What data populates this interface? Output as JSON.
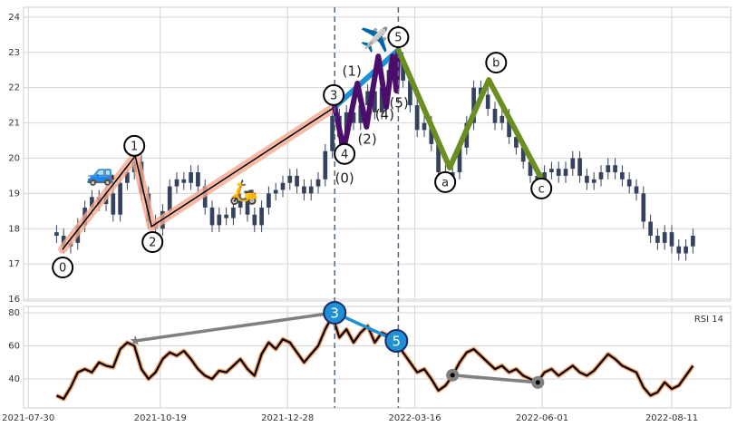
{
  "chart_data": [
    {
      "type": "candlestick",
      "x": [
        12,
        15,
        18,
        21,
        24,
        27,
        30,
        33,
        36,
        39,
        42,
        45,
        48,
        51,
        54,
        57,
        60,
        63,
        66,
        69,
        72,
        75,
        78,
        81,
        84,
        87,
        90,
        93,
        96,
        99,
        102,
        105,
        108,
        111,
        114,
        117,
        120,
        123,
        126,
        129,
        132,
        135,
        138,
        141,
        144,
        147,
        150,
        153,
        156,
        159,
        162,
        165,
        168,
        171,
        174,
        177,
        180,
        183,
        186,
        189,
        192,
        195,
        198,
        201,
        204,
        207,
        210,
        213,
        216,
        219,
        222,
        225,
        228,
        231,
        234,
        237,
        240,
        243,
        246,
        249,
        252,
        255,
        258,
        261,
        264,
        267,
        270,
        273,
        276,
        279,
        282
      ],
      "open": [
        17.9,
        17.8,
        17.5,
        17.6,
        18.1,
        18.6,
        18.9,
        18.7,
        19.0,
        18.4,
        19.3,
        19.6,
        19.9,
        19.0,
        18.2,
        18.0,
        18.5,
        19.2,
        19.4,
        19.3,
        19.6,
        19.2,
        18.6,
        18.1,
        18.4,
        18.3,
        18.6,
        18.8,
        18.4,
        18.1,
        18.6,
        19.0,
        19.1,
        19.3,
        19.5,
        19.2,
        19.0,
        19.2,
        19.4,
        20.2,
        21.2,
        20.6,
        21.3,
        21.0,
        21.5,
        21.9,
        21.3,
        22.0,
        22.5,
        22.8,
        22.2,
        21.5,
        20.8,
        21.0,
        20.4,
        19.6,
        19.3,
        19.6,
        20.3,
        21.0,
        22.0,
        21.8,
        21.4,
        21.0,
        21.2,
        20.6,
        20.3,
        19.9,
        19.5,
        19.3,
        19.6,
        19.7,
        19.5,
        19.7,
        20.0,
        19.5,
        19.3,
        19.4,
        19.6,
        19.8,
        19.6,
        19.4,
        19.2,
        19.0,
        18.2,
        17.8,
        17.6,
        17.9,
        17.5,
        17.3,
        17.5
      ],
      "high": [
        18.1,
        18.0,
        17.8,
        18.3,
        18.8,
        19.1,
        19.1,
        19.2,
        19.2,
        19.5,
        19.8,
        20.1,
        20.1,
        19.2,
        18.4,
        18.7,
        19.4,
        19.6,
        19.6,
        19.8,
        19.8,
        19.4,
        18.8,
        18.6,
        18.6,
        18.8,
        19.0,
        19.0,
        18.6,
        18.8,
        19.2,
        19.3,
        19.5,
        19.7,
        19.7,
        19.4,
        19.4,
        19.6,
        20.4,
        21.4,
        21.4,
        21.5,
        21.5,
        21.7,
        22.1,
        22.1,
        22.2,
        22.7,
        23.0,
        23.0,
        22.4,
        21.7,
        21.2,
        21.2,
        20.6,
        19.8,
        19.8,
        20.5,
        21.2,
        22.2,
        22.2,
        22.0,
        21.6,
        21.4,
        21.4,
        20.8,
        20.5,
        20.1,
        19.7,
        19.8,
        19.9,
        19.9,
        19.9,
        20.2,
        20.2,
        19.7,
        19.6,
        19.8,
        20.0,
        20.0,
        19.8,
        19.6,
        19.4,
        19.2,
        18.4,
        18.0,
        18.1,
        18.1,
        17.7,
        17.7,
        18.0
      ],
      "low": [
        17.6,
        17.3,
        17.3,
        17.4,
        17.9,
        18.4,
        18.5,
        18.5,
        18.2,
        18.2,
        19.1,
        19.4,
        18.8,
        18.0,
        17.8,
        17.8,
        18.3,
        19.0,
        19.1,
        19.1,
        19.0,
        18.4,
        17.9,
        17.9,
        18.1,
        18.1,
        18.4,
        18.2,
        17.9,
        17.9,
        18.4,
        18.8,
        18.9,
        19.1,
        19.0,
        18.8,
        18.8,
        19.0,
        19.2,
        20.0,
        20.4,
        20.4,
        20.8,
        20.8,
        21.3,
        21.1,
        21.1,
        21.8,
        22.3,
        22.0,
        21.3,
        20.6,
        20.6,
        20.2,
        19.4,
        19.1,
        19.1,
        19.4,
        20.1,
        20.8,
        21.6,
        21.2,
        20.8,
        20.8,
        20.4,
        20.1,
        19.7,
        19.3,
        19.1,
        19.1,
        19.4,
        19.3,
        19.3,
        19.5,
        19.3,
        19.1,
        19.1,
        19.2,
        19.4,
        19.4,
        19.2,
        19.0,
        18.8,
        18.0,
        17.6,
        17.4,
        17.4,
        17.3,
        17.1,
        17.1,
        17.3
      ],
      "close": [
        17.8,
        17.5,
        17.6,
        18.1,
        18.6,
        18.9,
        18.7,
        19.0,
        18.4,
        19.3,
        19.6,
        19.9,
        19.0,
        18.2,
        18.0,
        18.5,
        19.2,
        19.4,
        19.3,
        19.6,
        19.2,
        18.6,
        18.1,
        18.4,
        18.3,
        18.6,
        18.8,
        18.4,
        18.1,
        18.6,
        19.0,
        19.1,
        19.3,
        19.5,
        19.2,
        19.0,
        19.2,
        19.4,
        20.2,
        21.2,
        20.6,
        21.3,
        21.0,
        21.5,
        21.9,
        21.3,
        22.0,
        22.5,
        22.8,
        22.2,
        21.5,
        20.8,
        21.0,
        20.4,
        19.6,
        19.3,
        19.6,
        20.3,
        21.0,
        22.0,
        21.8,
        21.4,
        21.0,
        21.2,
        20.6,
        20.3,
        19.9,
        19.5,
        19.3,
        19.6,
        19.7,
        19.5,
        19.7,
        20.0,
        19.5,
        19.3,
        19.4,
        19.6,
        19.8,
        19.6,
        19.4,
        19.2,
        19.0,
        18.2,
        17.8,
        17.6,
        17.9,
        17.5,
        17.3,
        17.5,
        17.8
      ],
      "color": "#34425f",
      "xlim": [
        -2,
        298
      ],
      "ylim": [
        15.95,
        24.28
      ],
      "yticks": [
        16,
        17,
        18,
        19,
        20,
        21,
        22,
        23,
        24
      ],
      "grid": true,
      "vlines": [
        130,
        157
      ],
      "vline_color": "#4a6a8a",
      "overlays": [
        {
          "color": "#f4a98f",
          "style": "wide",
          "x": [
            14.6,
            45.4,
            52.3,
            130
          ],
          "y": [
            17.42,
            20.06,
            18.06,
            21.45
          ]
        },
        {
          "color": "#000000",
          "style": "thin",
          "x": [
            14.6,
            45.4,
            52.3,
            130
          ],
          "y": [
            17.42,
            20.06,
            18.06,
            21.45
          ]
        },
        {
          "color": "#1f8fd6",
          "style": "thick",
          "x": [
            130,
            157
          ],
          "y": [
            21.45,
            23.07
          ]
        },
        {
          "color": "#4b0f6b",
          "style": "thick",
          "x": [
            130,
            133.8,
            139.6,
            143.5,
            148.5,
            151.9,
            154.6,
            156.2,
            157
          ],
          "y": [
            21.45,
            20.24,
            22.12,
            20.89,
            22.89,
            21.45,
            22.89,
            21.91,
            23.07
          ]
        },
        {
          "color": "#6b8e23",
          "style": "thick",
          "x": [
            157,
            178.8,
            195.4,
            217.3
          ],
          "y": [
            23.07,
            19.73,
            22.22,
            19.47
          ]
        }
      ],
      "labels": [
        {
          "text": "0",
          "x": 14.6,
          "y": 16.9,
          "circle": true
        },
        {
          "text": "1",
          "x": 45,
          "y": 20.35,
          "circle": true
        },
        {
          "text": "2",
          "x": 52.7,
          "y": 17.62,
          "circle": true
        },
        {
          "text": "3",
          "x": 129.6,
          "y": 21.79,
          "circle": true
        },
        {
          "text": "4",
          "x": 134.2,
          "y": 20.12,
          "circle": true
        },
        {
          "text": "5",
          "x": 157,
          "y": 23.43,
          "circle": true
        },
        {
          "text": "a",
          "x": 176.9,
          "y": 19.32,
          "circle": true
        },
        {
          "text": "b",
          "x": 198.5,
          "y": 22.71,
          "circle": true
        },
        {
          "text": "c",
          "x": 217.7,
          "y": 19.14,
          "circle": true
        },
        {
          "text": "(0)",
          "x": 134.2,
          "y": 19.45,
          "circle": false
        },
        {
          "text": "(1)",
          "x": 137.3,
          "y": 22.48,
          "circle": false
        },
        {
          "text": "(2)",
          "x": 143.8,
          "y": 20.55,
          "circle": false
        },
        {
          "text": "(4)",
          "x": 151.2,
          "y": 21.25,
          "circle": false
        },
        {
          "text": "(5)",
          "x": 157.3,
          "y": 21.58,
          "circle": false
        }
      ],
      "icons": [
        {
          "text": "🚙",
          "x": 30.8,
          "y": 19.55
        },
        {
          "text": "🛵",
          "x": 91.5,
          "y": 19.01
        },
        {
          "text": "✈️",
          "x": 146.9,
          "y": 23.33
        }
      ]
    },
    {
      "type": "line",
      "title": "RSI 14",
      "x": [
        12,
        15,
        18,
        21,
        24,
        27,
        30,
        33,
        36,
        39,
        42,
        45,
        48,
        51,
        54,
        57,
        60,
        63,
        66,
        69,
        72,
        75,
        78,
        81,
        84,
        87,
        90,
        93,
        96,
        99,
        102,
        105,
        108,
        111,
        114,
        117,
        120,
        123,
        126,
        129,
        132,
        135,
        138,
        141,
        144,
        147,
        150,
        153,
        156,
        159,
        162,
        165,
        168,
        171,
        174,
        177,
        180,
        183,
        186,
        189,
        192,
        195,
        198,
        201,
        204,
        207,
        210,
        213,
        216,
        219,
        222,
        225,
        228,
        231,
        234,
        237,
        240,
        243,
        246,
        249,
        252,
        255,
        258,
        261,
        264,
        267,
        270,
        273,
        276,
        279,
        282
      ],
      "values": [
        30,
        28,
        35,
        44,
        46,
        44,
        50,
        48,
        47,
        58,
        62,
        60,
        46,
        40,
        44,
        52,
        56,
        54,
        57,
        52,
        46,
        42,
        40,
        45,
        44,
        48,
        52,
        46,
        42,
        55,
        62,
        58,
        64,
        62,
        56,
        50,
        55,
        60,
        70,
        78,
        65,
        70,
        62,
        68,
        72,
        62,
        68,
        66,
        63,
        56,
        50,
        44,
        46,
        40,
        33,
        36,
        42,
        50,
        56,
        58,
        54,
        50,
        46,
        48,
        44,
        46,
        42,
        40,
        38,
        44,
        46,
        42,
        45,
        48,
        44,
        42,
        45,
        50,
        55,
        52,
        48,
        46,
        44,
        35,
        30,
        32,
        38,
        34,
        36,
        42,
        48
      ],
      "color": "#000000",
      "halo_color": "#f5a46e",
      "xlim": [
        -2,
        298
      ],
      "xticks": [
        {
          "value": 0,
          "label": "2021-07-30"
        },
        {
          "value": 56,
          "label": "2021-10-19"
        },
        {
          "value": 110,
          "label": "2021-12-28"
        },
        {
          "value": 164,
          "label": "2022-03-16"
        },
        {
          "value": 218,
          "label": "2022-06-01"
        },
        {
          "value": 273,
          "label": "2022-08-11"
        }
      ],
      "ylim": [
        22.5,
        83.8
      ],
      "yticks": [
        40,
        60,
        80
      ],
      "grid": true,
      "overlays": [
        {
          "color": "#808080",
          "style": "medium",
          "x": [
            45.4,
            130
          ],
          "y": [
            63,
            80
          ]
        },
        {
          "color": "#1f8fd6",
          "style": "medium",
          "x": [
            130,
            156.2
          ],
          "y": [
            80,
            63
          ]
        },
        {
          "color": "#808080",
          "style": "medium",
          "x": [
            180,
            216.2
          ],
          "y": [
            42.3,
            37.9
          ]
        }
      ],
      "markers": [
        {
          "shape": "star",
          "color": "#808080",
          "x": 45.4,
          "y": 63
        },
        {
          "shape": "circle",
          "color": "#1f8fd6",
          "text": "3",
          "x": 130,
          "y": 80
        },
        {
          "shape": "circle",
          "color": "#1f8fd6",
          "text": "5",
          "x": 156.2,
          "y": 63
        },
        {
          "shape": "dot",
          "color": "#808080",
          "x": 180,
          "y": 42.3
        },
        {
          "shape": "dot",
          "color": "#808080",
          "x": 216.2,
          "y": 37.9
        }
      ]
    }
  ]
}
